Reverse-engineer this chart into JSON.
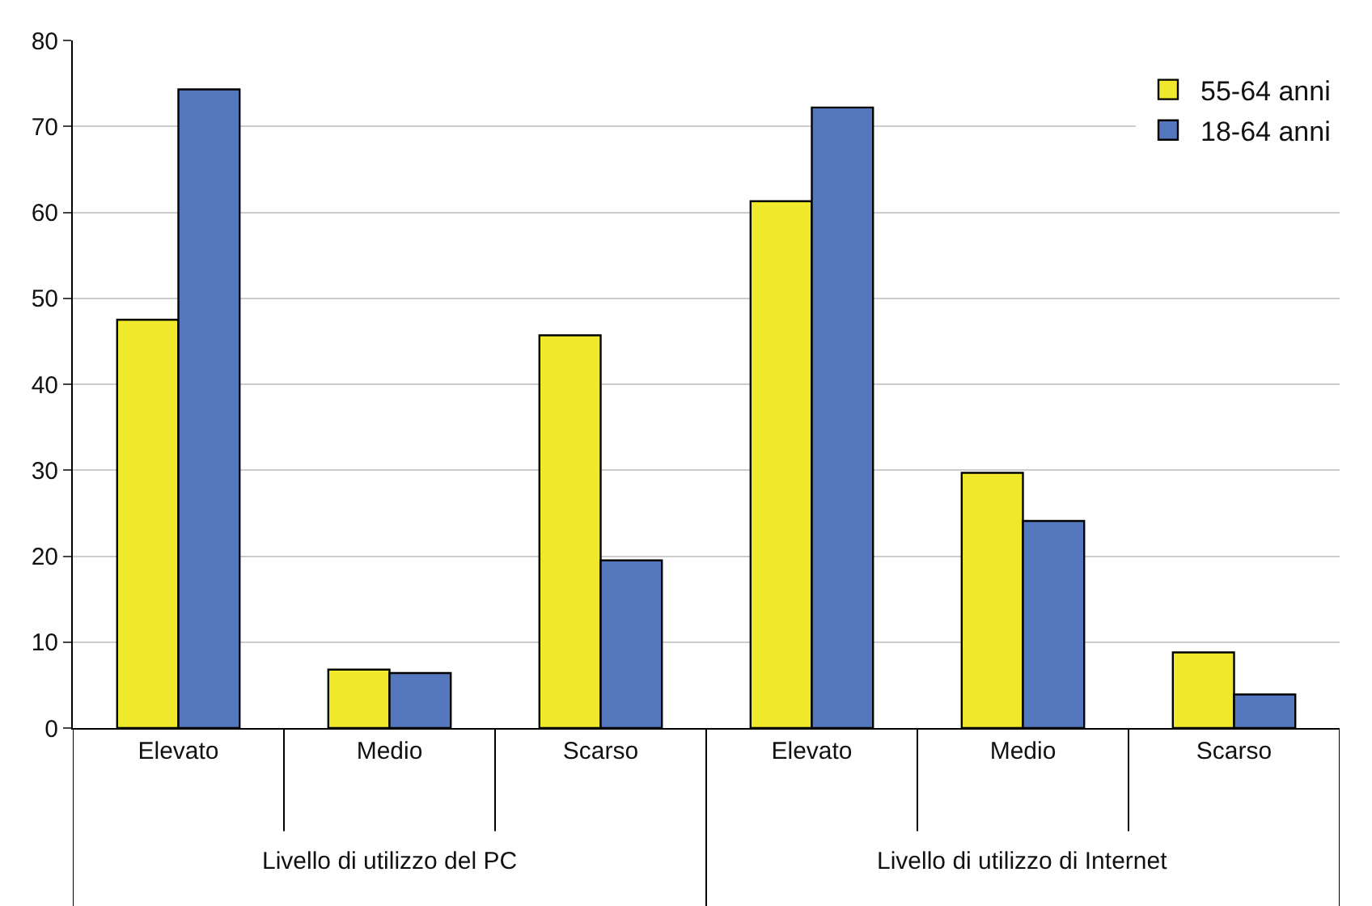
{
  "chart_data": {
    "type": "bar",
    "categories": [
      "Elevato",
      "Medio",
      "Scarso",
      "Elevato",
      "Medio",
      "Scarso"
    ],
    "series": [
      {
        "name": "55-64 anni",
        "color": "#f0e82a",
        "values": [
          47.5,
          6.8,
          45.7,
          61.3,
          29.7,
          8.8
        ]
      },
      {
        "name": "18-64 anni",
        "color": "#5577bd",
        "values": [
          74.3,
          6.4,
          19.5,
          72.2,
          24.1,
          3.9
        ]
      }
    ],
    "annotations": [
      "Livello di utilizzo del PC",
      "Livello di utilizzo di Internet"
    ],
    "ylim": [
      0,
      80
    ],
    "yticks": [
      0,
      10,
      20,
      30,
      40,
      50,
      60,
      70,
      80
    ],
    "grid": "y",
    "legend": "top right"
  }
}
